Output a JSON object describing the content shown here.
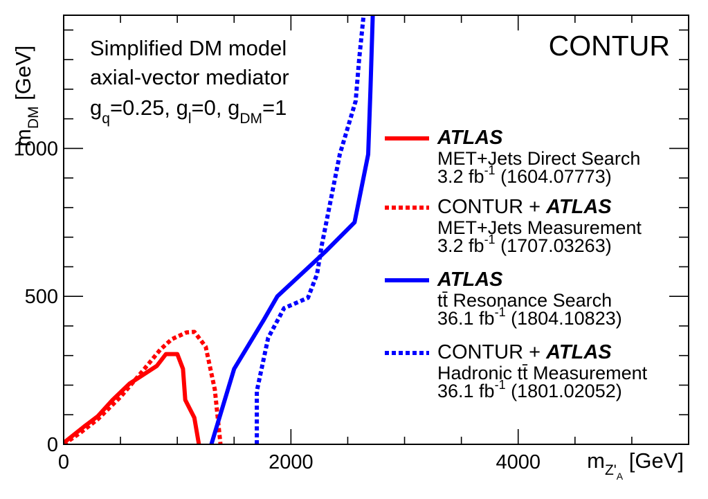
{
  "chart_data": {
    "type": "line",
    "title": "CONTUR",
    "annotation_lines": [
      "Simplified DM model",
      "axial-vector mediator"
    ],
    "couplings": [
      {
        "base": "g",
        "sub": "q",
        "rest": "=0.25, "
      },
      {
        "base": "g",
        "sub": "l",
        "rest": "=0, "
      },
      {
        "base": "g",
        "sub": "DM",
        "rest": "=1"
      }
    ],
    "xlabel": {
      "base": "m",
      "sub": "Z'",
      "subsub": "A",
      "unit": " [GeV]"
    },
    "ylabel": {
      "base": "m",
      "sub": "DM",
      "unit": " [GeV]"
    },
    "xlim": [
      0,
      5500
    ],
    "ylim": [
      0,
      1450
    ],
    "xticks": [
      0,
      2000,
      4000
    ],
    "xtick_labels": [
      "0",
      "2000",
      "4000"
    ],
    "yticks": [
      0,
      500,
      1000
    ],
    "ytick_labels": [
      "0",
      "500",
      "1000"
    ],
    "series": [
      {
        "name": "ATLAS MET+Jets Direct Search",
        "color": "#ff0000",
        "style": "solid",
        "x": [
          0,
          180,
          300,
          430,
          580,
          820,
          900,
          1000,
          1050,
          1070,
          1150,
          1190
        ],
        "y": [
          5,
          60,
          95,
          150,
          205,
          265,
          305,
          305,
          255,
          150,
          90,
          0
        ]
      },
      {
        "name": "CONTUR + ATLAS MET+Jets Measurement",
        "color": "#ff0000",
        "style": "dotted",
        "x": [
          0,
          150,
          300,
          500,
          700,
          850,
          950,
          1080,
          1150,
          1250,
          1330,
          1380
        ],
        "y": [
          0,
          40,
          85,
          160,
          250,
          320,
          355,
          378,
          380,
          330,
          185,
          0
        ]
      },
      {
        "name": "ATLAS tt Resonance Search",
        "color": "#0000ff",
        "style": "solid",
        "x": [
          1300,
          1500,
          1760,
          1880,
          2300,
          2560,
          2680,
          2700,
          2720
        ],
        "y": [
          0,
          255,
          420,
          500,
          650,
          750,
          980,
          1200,
          1450
        ]
      },
      {
        "name": "CONTUR + ATLAS Hadronic tt Measurement",
        "color": "#0000ff",
        "style": "dotted",
        "x": [
          1700,
          1700,
          1800,
          1940,
          2150,
          2230,
          2270,
          2430,
          2570,
          2600,
          2640
        ],
        "y": [
          0,
          180,
          360,
          460,
          495,
          575,
          670,
          980,
          1160,
          1300,
          1450
        ]
      }
    ]
  },
  "legend": [
    {
      "header_prefix": "",
      "header_bold": "ATLAS",
      "desc": "MET+Jets Direct Search",
      "lumi": "3.2 fb",
      "sup": "-1",
      "ref": " (1604.07773)",
      "color": "#ff0000",
      "style": "solid"
    },
    {
      "header_prefix": "CONTUR + ",
      "header_bold": "ATLAS",
      "desc": "MET+Jets Measurement",
      "lumi": "3.2 fb",
      "sup": "-1",
      "ref": " (1707.03263)",
      "color": "#ff0000",
      "style": "dotted"
    },
    {
      "header_prefix": "",
      "header_bold": "ATLAS",
      "desc": "tt̄ Resonance Search",
      "lumi": "36.1 fb",
      "sup": "-1",
      "ref": " (1804.10823)",
      "color": "#0000ff",
      "style": "solid"
    },
    {
      "header_prefix": "CONTUR + ",
      "header_bold": "ATLAS",
      "desc": "Hadronic tt̄ Measurement",
      "lumi": "36.1 fb",
      "sup": "-1",
      "ref": " (1801.02052)",
      "color": "#0000ff",
      "style": "dotted"
    }
  ]
}
